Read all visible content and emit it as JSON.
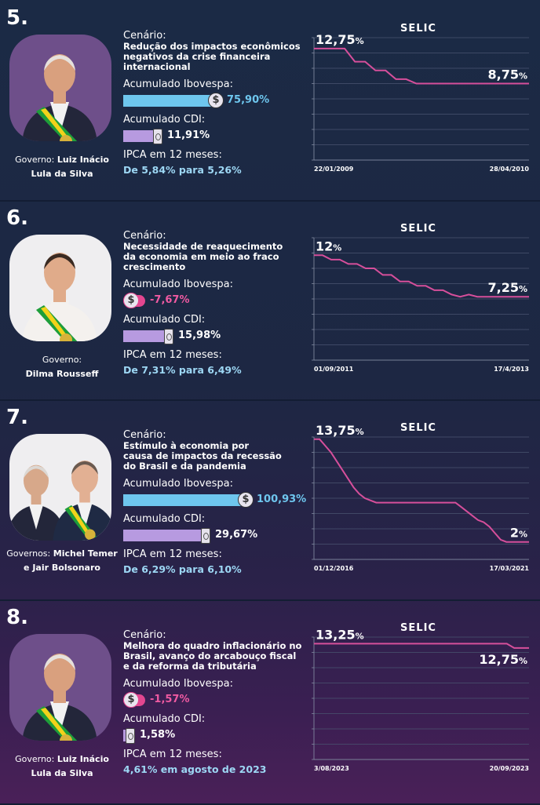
{
  "labels": {
    "cenario": "Cenário:",
    "ibovespa": "Acumulado Ibovespa:",
    "cdi": "Acumulado CDI:",
    "ipca": "IPCA em 12 meses:",
    "coin_symbol": "$"
  },
  "colors": {
    "line": "#d64f9b",
    "ibov_bar": "#6ec6ee",
    "neg_bar": "#e2468f",
    "cdi_bar": "#b79ae0",
    "portrait_bg": "#6e4f8a"
  },
  "sections": [
    {
      "num": "5.",
      "gov_prefix": "Governo: ",
      "gov_name_a": "Luiz Inácio",
      "gov_name_b": "Lula da Silva",
      "scenario": "Redução dos impactos econômicos\n negativos da crise financeira\n internacional",
      "ibovespa": "75,90%",
      "ibovespa_value": 75.9,
      "cdi": "11,91%",
      "cdi_value": 11.91,
      "ipca": "De 5,84% para 5,26%",
      "portrait": "man-sash"
    },
    {
      "num": "6.",
      "gov_prefix": "Governo:",
      "gov_name_a": "",
      "gov_name_b": "Dilma Rousseff",
      "scenario": "Necessidade de reaquecimento\nda economia em meio ao fraco\n crescimento",
      "ibovespa": "-7,67%",
      "ibovespa_value": -7.67,
      "cdi": "15,98%",
      "cdi_value": 15.98,
      "ipca": "De 7,31% para 6,49%",
      "portrait": "woman-sash"
    },
    {
      "num": "7.",
      "gov_prefix": "Governos: ",
      "gov_name_a": "Michel Temer",
      "gov_name_b": "e Jair Bolsonaro",
      "scenario": "Estímulo à economia por\ncausa de impactos da recessão\ndo Brasil e da pandemia",
      "ibovespa": "100,93%",
      "ibovespa_value": 100.93,
      "cdi": "29,67%",
      "cdi_value": 29.67,
      "ipca": "De 6,29% para 6,10%",
      "portrait": "two-men"
    },
    {
      "num": "8.",
      "gov_prefix": "Governo: ",
      "gov_name_a": "Luiz Inácio",
      "gov_name_b": "Lula da Silva",
      "scenario": "Melhora do quadro inflacionário no\nBrasil, avanço do arcabouço fiscal\ne da reforma da tributária",
      "ibovespa": "-1,57%",
      "ibovespa_value": -1.57,
      "cdi": "1,58%",
      "cdi_value": 1.58,
      "ipca": "4,61% em agosto de 2023",
      "portrait": "man-sash"
    }
  ],
  "chart_data": [
    {
      "type": "line",
      "title": "SELIC",
      "x_start_label": "22/01/2009",
      "x_end_label": "28/04/2010",
      "start_label": "12,75",
      "end_label": "8,75",
      "unit": "%",
      "ylim": [
        0,
        14
      ],
      "grid": true,
      "series": [
        {
          "values": [
            12.75,
            12.75,
            12.75,
            12.75,
            11.25,
            11.25,
            10.25,
            10.25,
            9.25,
            9.25,
            8.75,
            8.75,
            8.75,
            8.75,
            8.75,
            8.75,
            8.75,
            8.75,
            8.75,
            8.75,
            8.75,
            8.75
          ]
        }
      ]
    },
    {
      "type": "line",
      "title": "SELIC",
      "x_start_label": "01/09/2011",
      "x_end_label": "17/4/2013",
      "start_label": "12",
      "end_label": "7,25",
      "unit": "%",
      "ylim": [
        0,
        14
      ],
      "grid": true,
      "series": [
        {
          "values": [
            12,
            12,
            11.5,
            11.5,
            11,
            11,
            10.5,
            10.5,
            9.75,
            9.75,
            9,
            9,
            8.5,
            8.5,
            8,
            8,
            7.5,
            7.25,
            7.5,
            7.25,
            7.25,
            7.25,
            7.25,
            7.25,
            7.25,
            7.25
          ]
        }
      ]
    },
    {
      "type": "line",
      "title": "SELIC",
      "x_start_label": "01/12/2016",
      "x_end_label": "17/03/2021",
      "start_label": "13,75",
      "end_label": "2",
      "unit": "%",
      "ylim": [
        0,
        14
      ],
      "grid": true,
      "series": [
        {
          "values": [
            13.75,
            13.75,
            13,
            12.25,
            11.25,
            10.25,
            9.25,
            8.25,
            7.5,
            7,
            6.75,
            6.5,
            6.5,
            6.5,
            6.5,
            6.5,
            6.5,
            6.5,
            6.5,
            6.5,
            6.5,
            6.5,
            6.5,
            6.5,
            6.5,
            6.5,
            6,
            5.5,
            5,
            4.5,
            4.25,
            3.75,
            3,
            2.25,
            2,
            2,
            2,
            2,
            2
          ]
        }
      ]
    },
    {
      "type": "line",
      "title": "SELIC",
      "x_start_label": "3/08/2023",
      "x_end_label": "20/09/2023",
      "start_label": "13,25",
      "end_label": "12,75",
      "unit": "%",
      "ylim": [
        0,
        14
      ],
      "grid": true,
      "series": [
        {
          "values": [
            13.25,
            13.25,
            13.25,
            13.25,
            13.25,
            13.25,
            13.25,
            13.25,
            13.25,
            13.25,
            13.25,
            13.25,
            13.25,
            13.25,
            13.25,
            13.25,
            13.25,
            13.25,
            13.25,
            13.25,
            13.25,
            13.25,
            13.25,
            13.25,
            13.25,
            13.25,
            13.25,
            12.75,
            12.75,
            12.75
          ]
        }
      ]
    }
  ]
}
